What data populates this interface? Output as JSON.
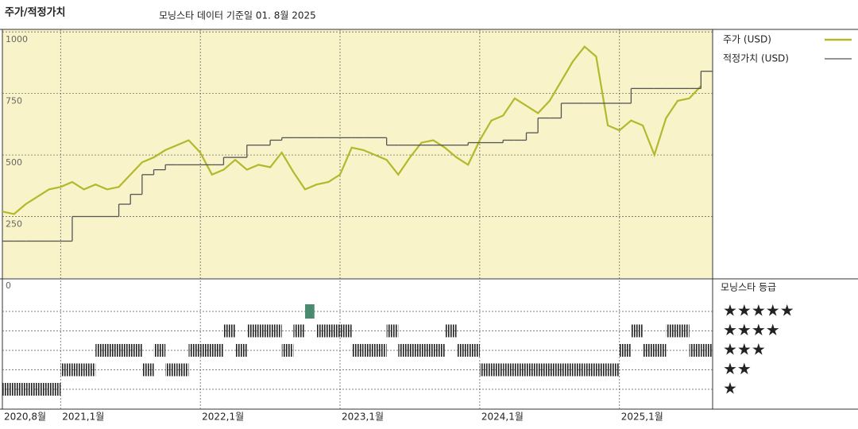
{
  "chart_data": {
    "type": "line",
    "title": "주가/적정가치",
    "subtitle": "모닝스타 데이터 기준일 01. 8월 2025",
    "x": [
      "2020-08",
      "2020-09",
      "2020-10",
      "2020-11",
      "2020-12",
      "2021-01",
      "2021-02",
      "2021-03",
      "2021-04",
      "2021-05",
      "2021-06",
      "2021-07",
      "2021-08",
      "2021-09",
      "2021-10",
      "2021-11",
      "2021-12",
      "2022-01",
      "2022-02",
      "2022-03",
      "2022-04",
      "2022-05",
      "2022-06",
      "2022-07",
      "2022-08",
      "2022-09",
      "2022-10",
      "2022-11",
      "2022-12",
      "2023-01",
      "2023-02",
      "2023-03",
      "2023-04",
      "2023-05",
      "2023-06",
      "2023-07",
      "2023-08",
      "2023-09",
      "2023-10",
      "2023-11",
      "2023-12",
      "2024-01",
      "2024-02",
      "2024-03",
      "2024-04",
      "2024-05",
      "2024-06",
      "2024-07",
      "2024-08",
      "2024-09",
      "2024-10",
      "2024-11",
      "2024-12",
      "2025-01",
      "2025-02",
      "2025-03",
      "2025-04",
      "2025-05",
      "2025-06",
      "2025-07",
      "2025-08"
    ],
    "xlim": [
      "2020-08",
      "2025-09"
    ],
    "xticks": [
      {
        "value": "2020-08",
        "label": "2020,8월"
      },
      {
        "value": "2021-01",
        "label": "2021,1월"
      },
      {
        "value": "2022-01",
        "label": "2022,1월"
      },
      {
        "value": "2023-01",
        "label": "2023,1월"
      },
      {
        "value": "2024-01",
        "label": "2024,1월"
      },
      {
        "value": "2025-01",
        "label": "2025,1월"
      }
    ],
    "ylim": [
      0,
      1010
    ],
    "yticks": [
      0,
      250,
      500,
      750,
      1000
    ],
    "grid": true,
    "series": [
      {
        "name": "주가 (USD)",
        "color": "#b3b82c",
        "values": [
          270,
          260,
          300,
          330,
          360,
          370,
          390,
          360,
          380,
          360,
          370,
          420,
          470,
          490,
          520,
          540,
          560,
          510,
          420,
          440,
          480,
          440,
          460,
          450,
          510,
          430,
          360,
          380,
          390,
          420,
          530,
          520,
          500,
          480,
          420,
          490,
          550,
          560,
          530,
          490,
          460,
          560,
          640,
          660,
          730,
          700,
          670,
          720,
          800,
          880,
          940,
          900,
          620,
          600,
          640,
          620,
          500,
          650,
          720,
          730,
          780
        ]
      },
      {
        "name": "적정가치 (USD)",
        "color": "#555555",
        "step": true,
        "values": [
          150,
          150,
          150,
          150,
          150,
          150,
          250,
          250,
          250,
          250,
          300,
          340,
          420,
          440,
          460,
          460,
          460,
          460,
          460,
          490,
          490,
          540,
          540,
          560,
          570,
          570,
          570,
          570,
          570,
          570,
          570,
          570,
          570,
          540,
          540,
          540,
          540,
          540,
          540,
          540,
          550,
          550,
          550,
          560,
          560,
          590,
          650,
          650,
          710,
          710,
          710,
          710,
          710,
          710,
          770,
          770,
          770,
          770,
          770,
          770,
          840
        ]
      }
    ],
    "rating": {
      "title": "모닝스타 등급",
      "levels": [
        "★",
        "★★",
        "★★★",
        "★★★★",
        "★★★★★"
      ],
      "values": [
        1,
        1,
        1,
        1,
        1,
        2,
        2,
        2,
        3,
        3,
        3,
        3,
        2,
        3,
        2,
        2,
        3,
        3,
        3,
        4,
        3,
        4,
        4,
        4,
        3,
        4,
        5,
        4,
        4,
        4,
        3,
        3,
        3,
        4,
        3,
        3,
        3,
        3,
        4,
        3,
        3,
        2,
        2,
        2,
        2,
        2,
        2,
        2,
        2,
        2,
        2,
        2,
        2,
        3,
        4,
        3,
        3,
        4,
        4,
        3,
        3
      ],
      "color": "#222222",
      "top_color": "#4a8a70"
    }
  }
}
